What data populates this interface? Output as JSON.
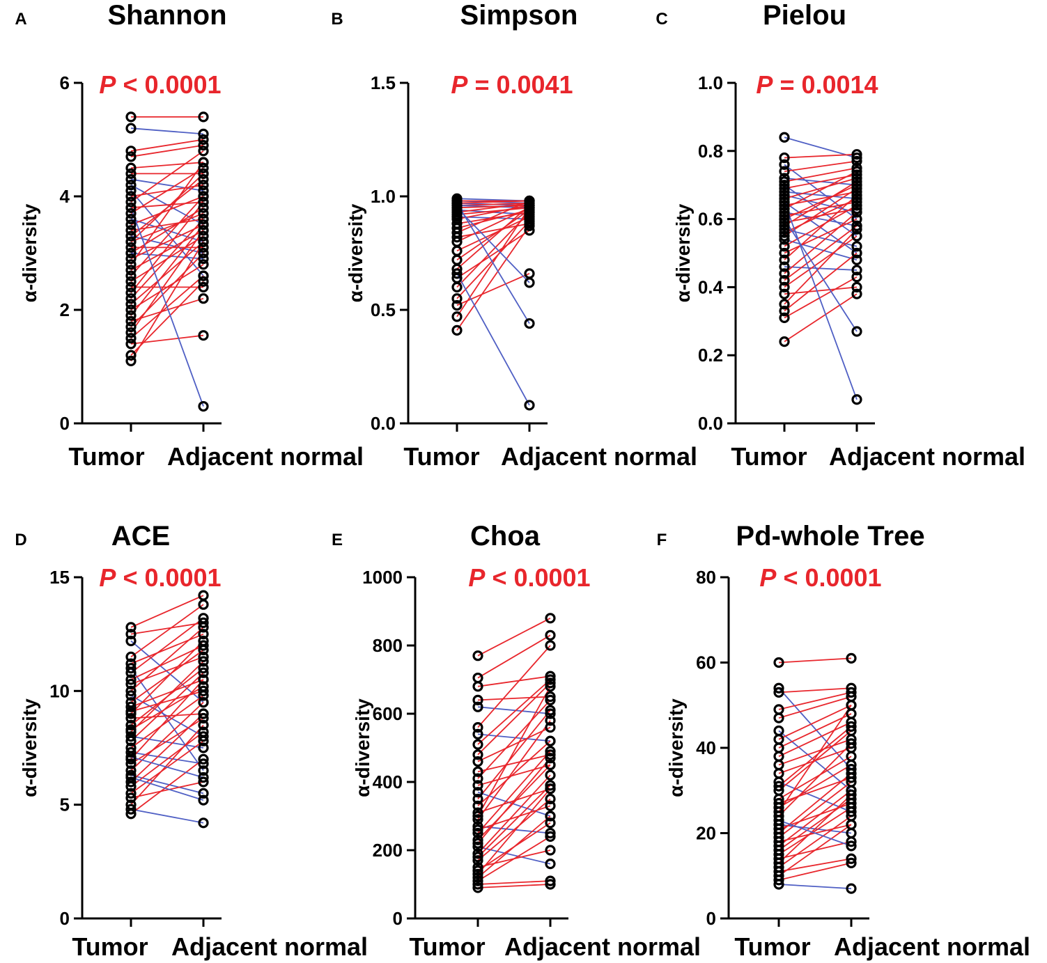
{
  "colors": {
    "increase": "#e8262c",
    "decrease": "#4f5fc4",
    "axis": "#000000",
    "pvalue": "#e8262c"
  },
  "chart_data": [
    {
      "panel": "A",
      "type": "scatter",
      "subtype": "paired-line",
      "title": "Shannon",
      "ylabel": "α-diversity",
      "ylim": [
        0,
        6
      ],
      "yticks": [
        "0",
        "2",
        "4",
        "6"
      ],
      "categories": [
        "Tumor",
        "Adjacent normal"
      ],
      "p_label": "P",
      "p_rest": " < 0.0001",
      "tumor": [
        5.4,
        5.2,
        4.8,
        4.7,
        4.5,
        4.4,
        4.3,
        4.2,
        4.1,
        4.0,
        3.9,
        3.8,
        3.7,
        3.6,
        3.5,
        3.4,
        3.3,
        3.3,
        3.2,
        3.2,
        3.1,
        3.0,
        3.0,
        2.9,
        2.8,
        2.7,
        2.6,
        2.5,
        2.4,
        2.3,
        2.2,
        2.1,
        2.0,
        1.9,
        1.8,
        1.7,
        1.6,
        1.5,
        1.4,
        1.2,
        1.1,
        3.8
      ],
      "normal": [
        5.4,
        5.1,
        5.0,
        4.9,
        4.6,
        4.4,
        4.1,
        3.5,
        2.6,
        4.2,
        4.8,
        3.9,
        4.5,
        3.2,
        4.0,
        3.6,
        4.3,
        3.0,
        3.7,
        4.4,
        3.1,
        3.8,
        2.9,
        3.5,
        4.6,
        3.4,
        4.0,
        3.3,
        2.4,
        3.9,
        3.6,
        3.2,
        2.8,
        3.5,
        2.2,
        3.0,
        3.4,
        2.6,
        1.55,
        2.5,
        3.2,
        0.3
      ]
    },
    {
      "panel": "B",
      "type": "scatter",
      "subtype": "paired-line",
      "title": "Simpson",
      "ylabel": "α-diversity",
      "ylim": [
        0,
        1.5
      ],
      "yticks": [
        "0.0",
        "0.5",
        "1.0",
        "1.5"
      ],
      "categories": [
        "Tumor",
        "Adjacent normal"
      ],
      "p_label": "P",
      "p_rest": " = 0.0041",
      "tumor": [
        0.99,
        0.98,
        0.98,
        0.97,
        0.97,
        0.96,
        0.96,
        0.95,
        0.94,
        0.93,
        0.92,
        0.91,
        0.9,
        0.88,
        0.86,
        0.84,
        0.82,
        0.8,
        0.76,
        0.72,
        0.68,
        0.64,
        0.6,
        0.55,
        0.52,
        0.47,
        0.41,
        0.95,
        0.97,
        0.66
      ],
      "normal": [
        0.98,
        0.97,
        0.98,
        0.96,
        0.98,
        0.97,
        0.95,
        0.96,
        0.92,
        0.97,
        0.95,
        0.9,
        0.96,
        0.93,
        0.94,
        0.98,
        0.88,
        0.95,
        0.91,
        0.94,
        0.96,
        0.85,
        0.93,
        0.89,
        0.66,
        0.95,
        0.87,
        0.62,
        0.44,
        0.08
      ]
    },
    {
      "panel": "C",
      "type": "scatter",
      "subtype": "paired-line",
      "title": "Pielou",
      "ylabel": "α-diversity",
      "ylim": [
        0,
        1.0
      ],
      "yticks": [
        "0.0",
        "0.2",
        "0.4",
        "0.6",
        "0.8",
        "1.0"
      ],
      "categories": [
        "Tumor",
        "Adjacent normal"
      ],
      "p_label": "P",
      "p_rest": " = 0.0014",
      "tumor": [
        0.84,
        0.78,
        0.76,
        0.74,
        0.72,
        0.71,
        0.7,
        0.69,
        0.68,
        0.67,
        0.66,
        0.65,
        0.64,
        0.63,
        0.62,
        0.61,
        0.6,
        0.59,
        0.58,
        0.57,
        0.56,
        0.55,
        0.54,
        0.52,
        0.5,
        0.48,
        0.46,
        0.44,
        0.42,
        0.4,
        0.38,
        0.35,
        0.33,
        0.31,
        0.24,
        0.6,
        0.65
      ],
      "normal": [
        0.78,
        0.79,
        0.6,
        0.77,
        0.7,
        0.75,
        0.55,
        0.73,
        0.66,
        0.62,
        0.72,
        0.5,
        0.68,
        0.74,
        0.58,
        0.65,
        0.7,
        0.63,
        0.71,
        0.52,
        0.66,
        0.69,
        0.48,
        0.64,
        0.6,
        0.67,
        0.45,
        0.62,
        0.58,
        0.55,
        0.4,
        0.57,
        0.5,
        0.43,
        0.38,
        0.27,
        0.07
      ]
    },
    {
      "panel": "D",
      "type": "scatter",
      "subtype": "paired-line",
      "title": "ACE",
      "ylabel": "α-diversity",
      "ylim": [
        0,
        15
      ],
      "yticks": [
        "0",
        "5",
        "10",
        "15"
      ],
      "categories": [
        "Tumor",
        "Adjacent normal"
      ],
      "p_label": "P",
      "p_rest": " < 0.0001",
      "tumor": [
        12.8,
        12.5,
        12.2,
        11.5,
        11.2,
        11.0,
        10.8,
        10.5,
        10.3,
        10.0,
        9.8,
        9.5,
        9.3,
        9.0,
        8.8,
        8.5,
        8.3,
        8.0,
        7.8,
        7.5,
        7.3,
        7.0,
        6.8,
        6.5,
        6.3,
        6.0,
        5.8,
        5.5,
        5.3,
        5.0,
        4.8,
        4.6,
        8.2,
        9.1,
        7.1,
        6.2
      ],
      "normal": [
        14.2,
        13.0,
        9.5,
        13.8,
        12.5,
        6.5,
        13.2,
        12.0,
        11.5,
        12.8,
        8.0,
        11.8,
        10.5,
        12.2,
        9.0,
        11.0,
        10.2,
        7.5,
        10.8,
        9.8,
        6.8,
        10.5,
        8.8,
        9.5,
        5.5,
        9.0,
        8.2,
        7.8,
        6.0,
        8.5,
        4.2,
        7.0,
        11.3,
        10.0,
        6.2,
        5.2
      ]
    },
    {
      "panel": "E",
      "type": "scatter",
      "subtype": "paired-line",
      "title": "Choa",
      "ylabel": "α-diversity",
      "ylim": [
        0,
        1000
      ],
      "yticks": [
        "0",
        "200",
        "400",
        "600",
        "800",
        "1000"
      ],
      "categories": [
        "Tumor",
        "Adjacent normal"
      ],
      "p_label": "P",
      "p_rest": " < 0.0001",
      "tumor": [
        770,
        705,
        680,
        640,
        620,
        560,
        540,
        510,
        480,
        460,
        430,
        410,
        390,
        370,
        350,
        330,
        310,
        290,
        270,
        250,
        230,
        210,
        190,
        170,
        150,
        130,
        120,
        110,
        100,
        90,
        300,
        260,
        220,
        180,
        140
      ],
      "normal": [
        880,
        830,
        710,
        650,
        600,
        800,
        520,
        700,
        690,
        560,
        480,
        640,
        450,
        300,
        610,
        520,
        380,
        580,
        250,
        490,
        450,
        160,
        420,
        350,
        200,
        380,
        300,
        240,
        110,
        100,
        680,
        330,
        470,
        390,
        280
      ]
    },
    {
      "panel": "F",
      "type": "scatter",
      "subtype": "paired-line",
      "title": "Pd-whole Tree",
      "ylabel": "α-diversity",
      "ylim": [
        0,
        80
      ],
      "yticks": [
        "0",
        "20",
        "40",
        "60",
        "80"
      ],
      "categories": [
        "Tumor",
        "Adjacent normal"
      ],
      "p_label": "P",
      "p_rest": " < 0.0001",
      "tumor": [
        60,
        54,
        53,
        49,
        47,
        44,
        42,
        40,
        38,
        36,
        34,
        32,
        30,
        28,
        26,
        24,
        22,
        20,
        19,
        18,
        17,
        16,
        15,
        14,
        13,
        12,
        11,
        10,
        9,
        8,
        25,
        21,
        27,
        31,
        23
      ],
      "normal": [
        61,
        35,
        54,
        53,
        52,
        30,
        50,
        48,
        46,
        42,
        40,
        25,
        44,
        38,
        36,
        41,
        20,
        34,
        32,
        22,
        30,
        28,
        26,
        18,
        29,
        24,
        14,
        22,
        13,
        7,
        50,
        27,
        33,
        45,
        17
      ]
    }
  ]
}
